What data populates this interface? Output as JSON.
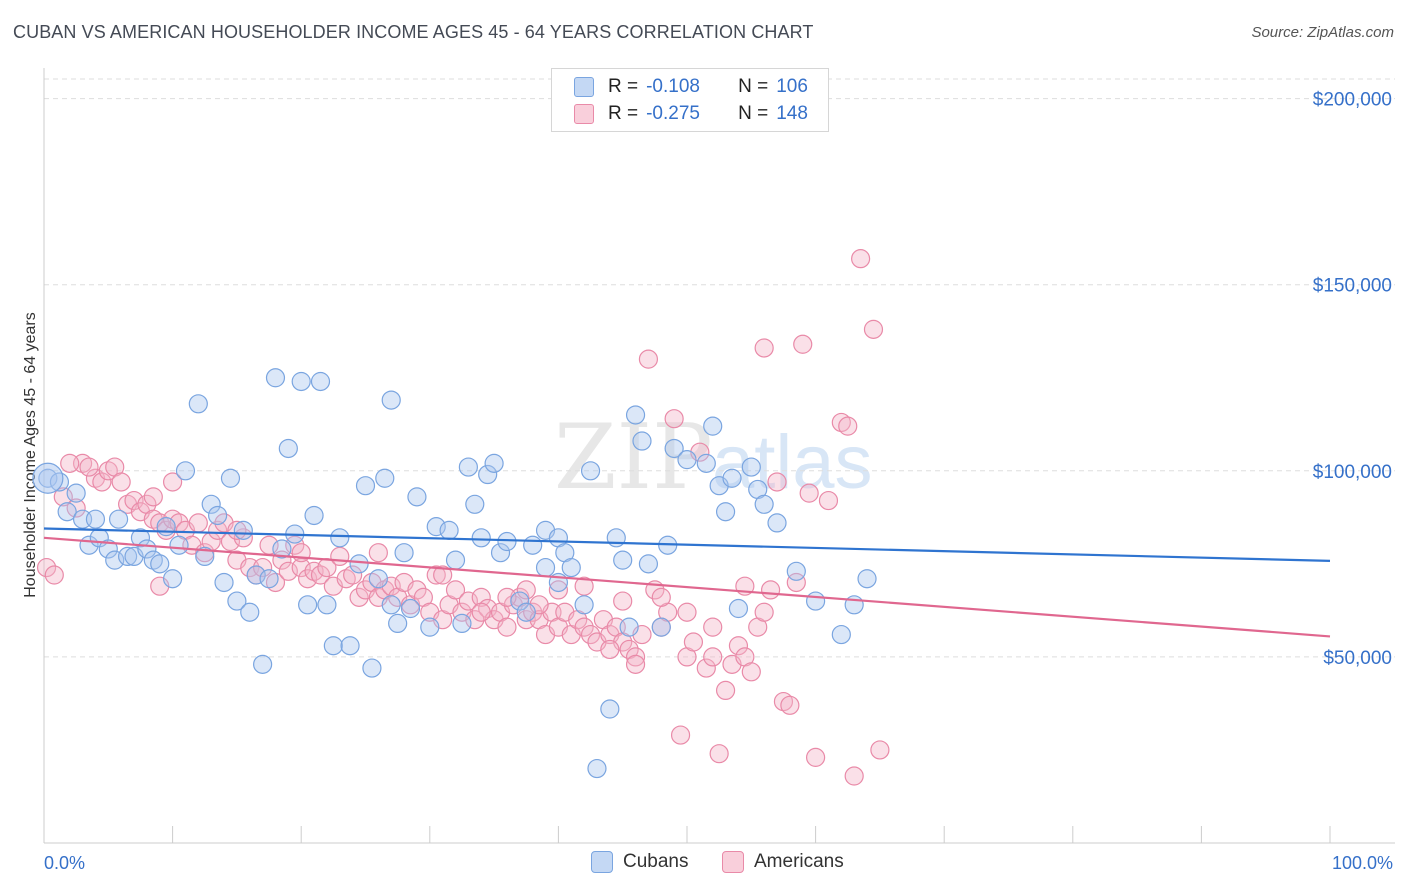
{
  "title": "CUBAN VS AMERICAN HOUSEHOLDER INCOME AGES 45 - 64 YEARS CORRELATION CHART",
  "source": "Source: ZipAtlas.com",
  "watermark": {
    "zip": "ZIP",
    "atlas": "atlas"
  },
  "legend": {
    "r_label": "R =",
    "n_label": "N =",
    "rows": [
      {
        "r": "-0.108",
        "n": "106",
        "color": "#a9c6ef"
      },
      {
        "r": "-0.275",
        "n": "148",
        "color": "#f4b6c8"
      }
    ]
  },
  "bottom_legend": [
    "Cubans",
    "Americans"
  ],
  "x_tick_labels": {
    "min": "0.0%",
    "max": "100.0%"
  },
  "colors": {
    "blue_fill": "#a9c6ef",
    "blue_stroke": "#7aa5e0",
    "blue_line": "#2f74d0",
    "pink_fill": "#f4b6c8",
    "pink_stroke": "#e98aa8",
    "pink_line": "#e0678f",
    "tick_text": "#3570c9",
    "grid": "#dddddd"
  },
  "chart_data": {
    "type": "scatter",
    "title": "CUBAN VS AMERICAN HOUSEHOLDER INCOME AGES 45 - 64 YEARS CORRELATION CHART",
    "xlabel": "",
    "ylabel": "Householder Income Ages 45 - 64 years",
    "xlim": [
      0,
      100
    ],
    "ylim": [
      0,
      205000
    ],
    "y_ticks": [
      50000,
      100000,
      150000,
      200000
    ],
    "y_tick_labels": [
      "$50,000",
      "$100,000",
      "$150,000",
      "$200,000"
    ],
    "x_ticks": [
      0,
      10,
      20,
      30,
      40,
      50,
      60,
      70,
      80,
      90,
      100
    ],
    "grid": "horizontal dashed",
    "legend_position": "top-center",
    "series": [
      {
        "name": "Cubans",
        "regression": {
          "x": [
            0,
            100
          ],
          "y": [
            84500,
            75800
          ]
        },
        "points": [
          [
            0.3,
            98000
          ],
          [
            1.2,
            97000
          ],
          [
            1.8,
            89000
          ],
          [
            2.5,
            94000
          ],
          [
            3.0,
            87000
          ],
          [
            3.5,
            80000
          ],
          [
            4.0,
            87000
          ],
          [
            4.3,
            82000
          ],
          [
            5.0,
            79000
          ],
          [
            5.5,
            76000
          ],
          [
            5.8,
            87000
          ],
          [
            6.5,
            77000
          ],
          [
            7.0,
            77000
          ],
          [
            7.5,
            82000
          ],
          [
            8.0,
            79000
          ],
          [
            8.5,
            76000
          ],
          [
            9.0,
            75000
          ],
          [
            9.5,
            85000
          ],
          [
            10.0,
            71000
          ],
          [
            10.5,
            80000
          ],
          [
            11.0,
            100000
          ],
          [
            12.0,
            118000
          ],
          [
            12.5,
            77000
          ],
          [
            13.0,
            91000
          ],
          [
            13.5,
            88000
          ],
          [
            14.0,
            70000
          ],
          [
            14.5,
            98000
          ],
          [
            15.0,
            65000
          ],
          [
            15.5,
            84000
          ],
          [
            16.0,
            62000
          ],
          [
            16.5,
            72000
          ],
          [
            17.0,
            48000
          ],
          [
            17.5,
            71000
          ],
          [
            18.0,
            125000
          ],
          [
            18.5,
            79000
          ],
          [
            19.0,
            106000
          ],
          [
            19.5,
            83000
          ],
          [
            20.0,
            124000
          ],
          [
            20.5,
            64000
          ],
          [
            21.0,
            88000
          ],
          [
            21.5,
            124000
          ],
          [
            22.0,
            64000
          ],
          [
            22.5,
            53000
          ],
          [
            23.0,
            82000
          ],
          [
            23.8,
            53000
          ],
          [
            24.5,
            75000
          ],
          [
            25.0,
            96000
          ],
          [
            25.5,
            47000
          ],
          [
            26.0,
            71000
          ],
          [
            26.5,
            98000
          ],
          [
            27.0,
            119000
          ],
          [
            27.5,
            59000
          ],
          [
            28.0,
            78000
          ],
          [
            28.5,
            63000
          ],
          [
            29.0,
            93000
          ],
          [
            30.0,
            58000
          ],
          [
            30.5,
            85000
          ],
          [
            31.5,
            84000
          ],
          [
            32.0,
            76000
          ],
          [
            32.5,
            59000
          ],
          [
            33.0,
            101000
          ],
          [
            33.5,
            91000
          ],
          [
            34.0,
            82000
          ],
          [
            34.5,
            99000
          ],
          [
            35.0,
            102000
          ],
          [
            35.5,
            78000
          ],
          [
            36.0,
            81000
          ],
          [
            37.0,
            65000
          ],
          [
            38.0,
            80000
          ],
          [
            39.0,
            84000
          ],
          [
            40.0,
            82000
          ],
          [
            40.5,
            78000
          ],
          [
            41.0,
            74000
          ],
          [
            42.0,
            64000
          ],
          [
            42.5,
            100000
          ],
          [
            43.0,
            20000
          ],
          [
            44.0,
            36000
          ],
          [
            44.5,
            82000
          ],
          [
            45.0,
            76000
          ],
          [
            46.0,
            115000
          ],
          [
            46.5,
            108000
          ],
          [
            47.0,
            75000
          ],
          [
            48.0,
            58000
          ],
          [
            48.5,
            80000
          ],
          [
            49.0,
            106000
          ],
          [
            50.0,
            103000
          ],
          [
            51.5,
            102000
          ],
          [
            52.0,
            112000
          ],
          [
            52.5,
            96000
          ],
          [
            53.0,
            89000
          ],
          [
            53.5,
            98000
          ],
          [
            54.0,
            63000
          ],
          [
            55.0,
            101000
          ],
          [
            55.5,
            95000
          ],
          [
            56.0,
            91000
          ],
          [
            57.0,
            86000
          ],
          [
            58.5,
            73000
          ],
          [
            60.0,
            65000
          ],
          [
            62.0,
            56000
          ],
          [
            63.0,
            64000
          ],
          [
            64.0,
            71000
          ],
          [
            40.0,
            70000
          ],
          [
            37.5,
            62000
          ],
          [
            39.0,
            74000
          ],
          [
            27.0,
            64000
          ],
          [
            45.5,
            58000
          ]
        ]
      },
      {
        "name": "Americans",
        "regression": {
          "x": [
            0,
            100
          ],
          "y": [
            82000,
            55500
          ]
        },
        "points": [
          [
            0.2,
            74000
          ],
          [
            0.8,
            72000
          ],
          [
            1.5,
            93000
          ],
          [
            2.5,
            90000
          ],
          [
            3.0,
            102000
          ],
          [
            4.0,
            98000
          ],
          [
            4.5,
            97000
          ],
          [
            5.0,
            100000
          ],
          [
            5.5,
            101000
          ],
          [
            6.0,
            97000
          ],
          [
            6.5,
            91000
          ],
          [
            7.0,
            92000
          ],
          [
            7.5,
            89000
          ],
          [
            8.0,
            91000
          ],
          [
            8.5,
            87000
          ],
          [
            9.0,
            86000
          ],
          [
            9.5,
            84000
          ],
          [
            10.0,
            87000
          ],
          [
            10.5,
            86000
          ],
          [
            11.0,
            84000
          ],
          [
            11.5,
            80000
          ],
          [
            12.0,
            86000
          ],
          [
            12.5,
            78000
          ],
          [
            13.0,
            81000
          ],
          [
            13.5,
            84000
          ],
          [
            14.0,
            86000
          ],
          [
            14.5,
            81000
          ],
          [
            15.0,
            76000
          ],
          [
            15.5,
            82000
          ],
          [
            16.0,
            74000
          ],
          [
            16.5,
            72000
          ],
          [
            17.0,
            74000
          ],
          [
            17.5,
            80000
          ],
          [
            18.0,
            70000
          ],
          [
            18.5,
            76000
          ],
          [
            19.0,
            73000
          ],
          [
            19.5,
            80000
          ],
          [
            20.0,
            74000
          ],
          [
            20.5,
            71000
          ],
          [
            21.0,
            73000
          ],
          [
            21.5,
            72000
          ],
          [
            22.0,
            74000
          ],
          [
            22.5,
            69000
          ],
          [
            23.0,
            77000
          ],
          [
            23.5,
            71000
          ],
          [
            24.0,
            72000
          ],
          [
            24.5,
            66000
          ],
          [
            25.0,
            68000
          ],
          [
            25.5,
            70000
          ],
          [
            26.0,
            66000
          ],
          [
            26.5,
            68000
          ],
          [
            27.0,
            69000
          ],
          [
            27.5,
            66000
          ],
          [
            28.0,
            70000
          ],
          [
            28.5,
            64000
          ],
          [
            29.0,
            68000
          ],
          [
            29.5,
            66000
          ],
          [
            30.0,
            62000
          ],
          [
            30.5,
            72000
          ],
          [
            31.0,
            60000
          ],
          [
            31.5,
            64000
          ],
          [
            32.0,
            68000
          ],
          [
            32.5,
            62000
          ],
          [
            33.0,
            65000
          ],
          [
            33.5,
            60000
          ],
          [
            34.0,
            66000
          ],
          [
            34.5,
            63000
          ],
          [
            35.0,
            60000
          ],
          [
            35.5,
            62000
          ],
          [
            36.0,
            58000
          ],
          [
            36.5,
            64000
          ],
          [
            37.0,
            66000
          ],
          [
            37.5,
            60000
          ],
          [
            38.0,
            62000
          ],
          [
            38.5,
            60000
          ],
          [
            39.0,
            56000
          ],
          [
            39.5,
            62000
          ],
          [
            40.0,
            58000
          ],
          [
            40.5,
            62000
          ],
          [
            41.0,
            56000
          ],
          [
            41.5,
            60000
          ],
          [
            42.0,
            58000
          ],
          [
            42.5,
            56000
          ],
          [
            43.0,
            54000
          ],
          [
            43.5,
            60000
          ],
          [
            44.0,
            56000
          ],
          [
            44.5,
            58000
          ],
          [
            45.0,
            54000
          ],
          [
            45.5,
            52000
          ],
          [
            46.0,
            50000
          ],
          [
            46.5,
            56000
          ],
          [
            47.0,
            130000
          ],
          [
            47.5,
            68000
          ],
          [
            48.0,
            58000
          ],
          [
            48.5,
            62000
          ],
          [
            49.0,
            114000
          ],
          [
            49.5,
            29000
          ],
          [
            50.0,
            50000
          ],
          [
            50.5,
            54000
          ],
          [
            51.0,
            105000
          ],
          [
            51.5,
            47000
          ],
          [
            52.0,
            50000
          ],
          [
            52.5,
            24000
          ],
          [
            53.0,
            41000
          ],
          [
            53.5,
            48000
          ],
          [
            54.0,
            53000
          ],
          [
            54.5,
            50000
          ],
          [
            55.0,
            46000
          ],
          [
            55.5,
            58000
          ],
          [
            56.0,
            133000
          ],
          [
            56.5,
            68000
          ],
          [
            57.0,
            97000
          ],
          [
            57.5,
            38000
          ],
          [
            58.0,
            37000
          ],
          [
            58.5,
            70000
          ],
          [
            59.0,
            134000
          ],
          [
            59.5,
            94000
          ],
          [
            60.0,
            23000
          ],
          [
            61.0,
            92000
          ],
          [
            62.0,
            113000
          ],
          [
            62.5,
            112000
          ],
          [
            63.0,
            18000
          ],
          [
            63.5,
            157000
          ],
          [
            64.5,
            138000
          ],
          [
            65.0,
            25000
          ],
          [
            26.0,
            78000
          ],
          [
            10.0,
            97000
          ],
          [
            9.0,
            69000
          ],
          [
            2.0,
            102000
          ],
          [
            3.5,
            101000
          ],
          [
            8.5,
            93000
          ],
          [
            31.0,
            72000
          ],
          [
            36.0,
            66000
          ],
          [
            37.5,
            68000
          ],
          [
            38.5,
            64000
          ],
          [
            42.0,
            69000
          ],
          [
            44.0,
            52000
          ],
          [
            15.0,
            84000
          ],
          [
            20.0,
            78000
          ],
          [
            34.0,
            62000
          ],
          [
            40.0,
            68000
          ],
          [
            46.0,
            48000
          ],
          [
            48.0,
            66000
          ],
          [
            50.0,
            62000
          ],
          [
            52.0,
            58000
          ],
          [
            54.5,
            69000
          ],
          [
            56.0,
            62000
          ],
          [
            45.0,
            65000
          ]
        ]
      }
    ]
  }
}
